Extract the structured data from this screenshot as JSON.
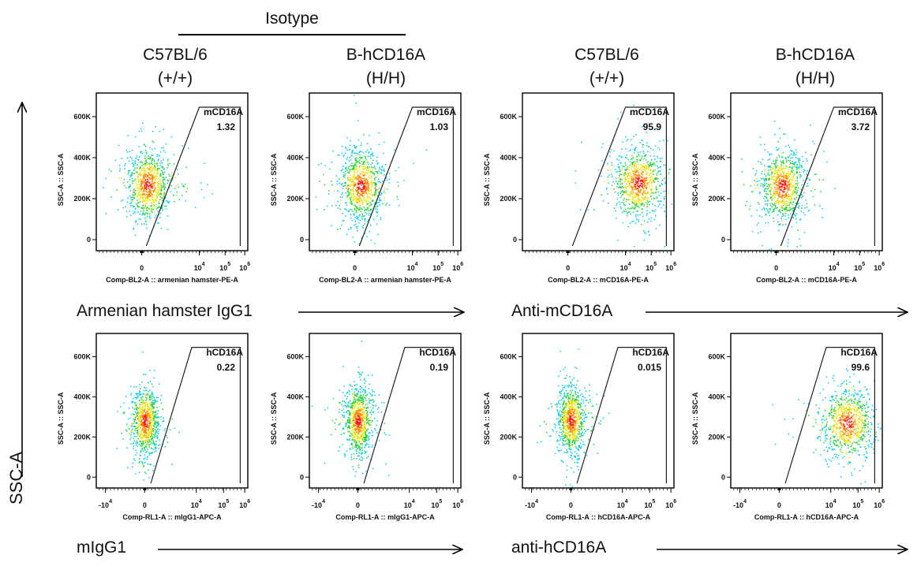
{
  "figure": {
    "group_label": "Isotype",
    "columns": [
      {
        "strain": "C57BL/6",
        "genotype": "(+/+)"
      },
      {
        "strain": "B-hCD16A",
        "genotype": "(H/H)"
      },
      {
        "strain": "C57BL/6",
        "genotype": "(+/+)"
      },
      {
        "strain": "B-hCD16A",
        "genotype": "(H/H)"
      }
    ],
    "row_labels": [
      "Armenian hamster IgG1",
      "Anti-mCD16A",
      "mIgG1",
      "anti-hCD16A"
    ],
    "y_axis_label": "SSC-A"
  },
  "chart_data": [
    {
      "type": "scatter",
      "ylabel": "SSC-A :: SSC-A",
      "xlabel": "Comp-BL2-A :: armenian hamster-PE-A",
      "gate": {
        "name": "mCD16A",
        "value": "1.32"
      },
      "center": {
        "x": 0.4,
        "y": 270000
      },
      "x_ticks": [
        "0",
        "10^4",
        "10^5",
        "10^6"
      ],
      "y_ticks": [
        "0",
        "200K",
        "400K",
        "600K"
      ]
    },
    {
      "type": "scatter",
      "ylabel": "SSC-A :: SSC-A",
      "xlabel": "Comp-BL2-A :: armenian hamster-PE-A",
      "gate": {
        "name": "mCD16A",
        "value": "1.03"
      },
      "center": {
        "x": 0.4,
        "y": 265000
      },
      "x_ticks": [
        "0",
        "10^4",
        "10^5",
        "10^6"
      ],
      "y_ticks": [
        "0",
        "200K",
        "400K",
        "600K"
      ]
    },
    {
      "type": "scatter",
      "ylabel": "SSC-A :: SSC-A",
      "xlabel": "Comp-BL2-A :: mCD16A-PE-A",
      "gate": {
        "name": "mCD16A",
        "value": "95.9"
      },
      "center": {
        "x": 4.5,
        "y": 280000
      },
      "x_ticks": [
        "0",
        "10^4",
        "10^5",
        "10^6"
      ],
      "y_ticks": [
        "0",
        "200K",
        "400K",
        "600K"
      ]
    },
    {
      "type": "scatter",
      "ylabel": "SSC-A :: SSC-A",
      "xlabel": "Comp-BL2-A :: mCD16A-PE-A",
      "gate": {
        "name": "mCD16A",
        "value": "3.72"
      },
      "center": {
        "x": 0.4,
        "y": 265000
      },
      "x_ticks": [
        "0",
        "10^4",
        "10^5",
        "10^6"
      ],
      "y_ticks": [
        "0",
        "200K",
        "400K",
        "600K"
      ]
    },
    {
      "type": "scatter",
      "ylabel": "SSC-A :: SSC-A",
      "xlabel": "Comp-RL1-A :: mIgG1-APC-A",
      "gate": {
        "name": "hCD16A",
        "value": "0.22"
      },
      "center": {
        "x": 0.0,
        "y": 280000
      },
      "x_ticks": [
        "-10^4",
        "0",
        "10^4",
        "10^5",
        "10^6"
      ],
      "y_ticks": [
        "0",
        "200K",
        "400K",
        "600K"
      ]
    },
    {
      "type": "scatter",
      "ylabel": "SSC-A :: SSC-A",
      "xlabel": "Comp-RL1-A :: mIgG1-APC-A",
      "gate": {
        "name": "hCD16A",
        "value": "0.19"
      },
      "center": {
        "x": 0.0,
        "y": 280000
      },
      "x_ticks": [
        "-10^4",
        "0",
        "10^4",
        "10^5",
        "10^6"
      ],
      "y_ticks": [
        "0",
        "200K",
        "400K",
        "600K"
      ]
    },
    {
      "type": "scatter",
      "ylabel": "SSC-A :: SSC-A",
      "xlabel": "Comp-RL1-A :: hCD16A-APC-A",
      "gate": {
        "name": "hCD16A",
        "value": "0.015"
      },
      "center": {
        "x": 0.0,
        "y": 285000
      },
      "x_ticks": [
        "-10^4",
        "0",
        "10^4",
        "10^5",
        "10^6"
      ],
      "y_ticks": [
        "0",
        "200K",
        "400K",
        "600K"
      ]
    },
    {
      "type": "scatter",
      "ylabel": "SSC-A :: SSC-A",
      "xlabel": "Comp-RL1-A :: hCD16A-APC-A",
      "gate": {
        "name": "hCD16A",
        "value": "99.6"
      },
      "center": {
        "x": 4.6,
        "y": 270000
      },
      "x_ticks": [
        "-10^4",
        "0",
        "10^4",
        "10^5",
        "10^6"
      ],
      "y_ticks": [
        "0",
        "200K",
        "400K",
        "600K"
      ]
    }
  ]
}
